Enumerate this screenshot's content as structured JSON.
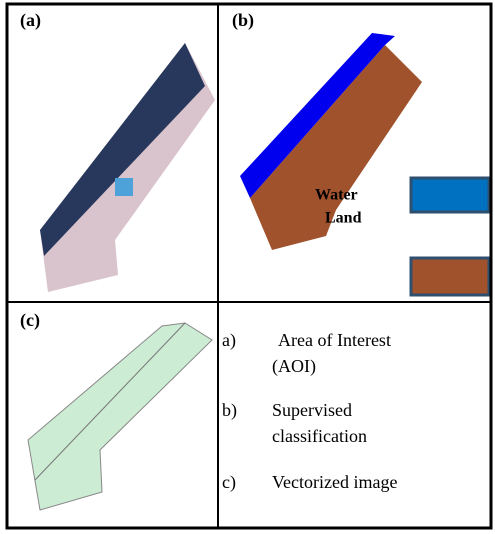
{
  "panels": [
    {
      "label": "(a)"
    },
    {
      "label": "(b)",
      "legend": [
        "Water",
        "Land"
      ]
    },
    {
      "label": "(c)"
    }
  ],
  "captions": [
    {
      "marker": "a)",
      "lines": [
        "Area of Interest",
        "(AOI)"
      ]
    },
    {
      "marker": "b)",
      "lines": [
        "Supervised",
        "classification"
      ]
    },
    {
      "marker": "c)",
      "lines": [
        "Vectorized image"
      ]
    }
  ]
}
